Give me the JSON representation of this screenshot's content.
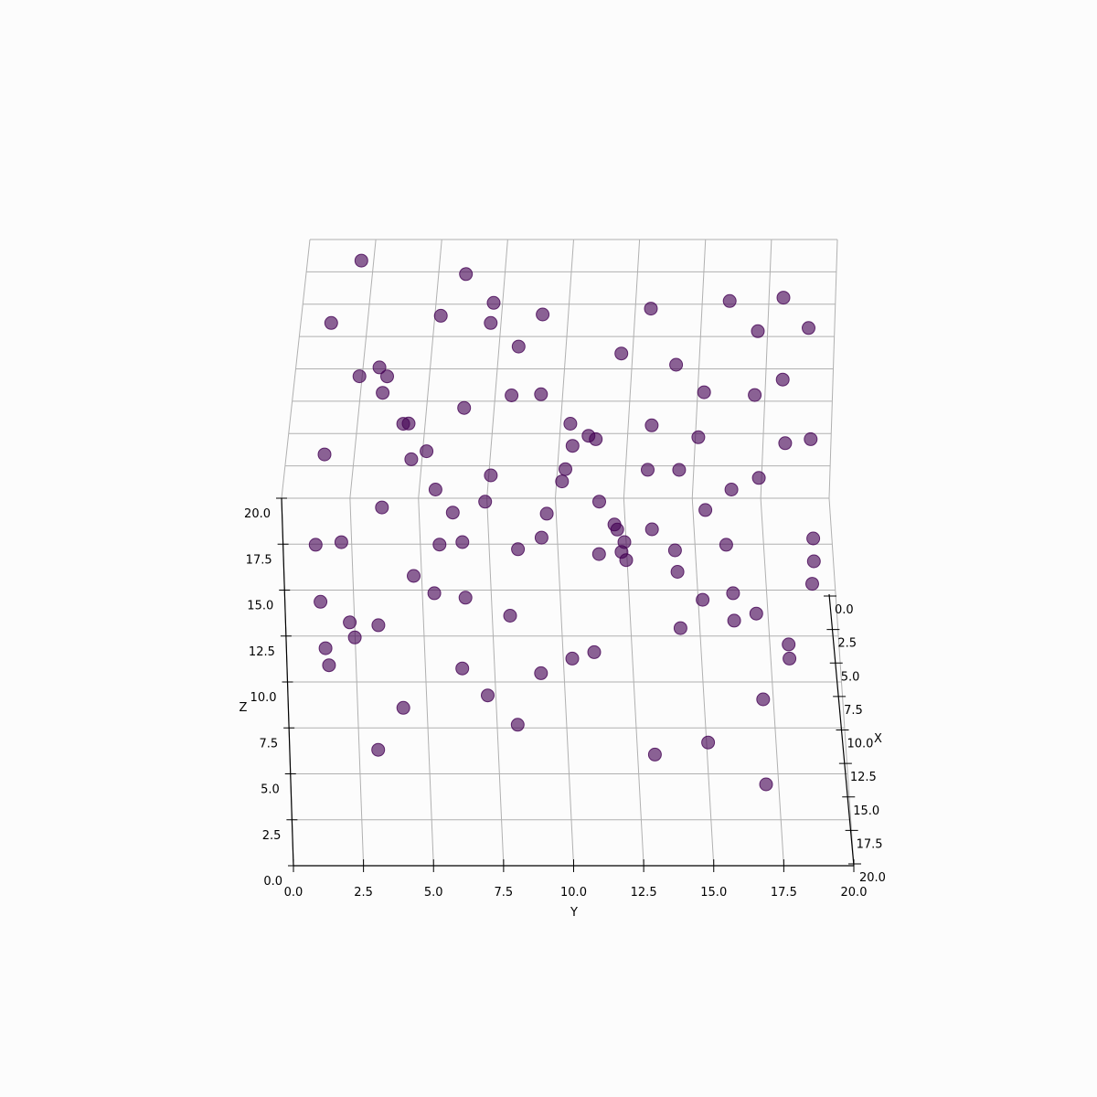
{
  "chart_data": {
    "type": "scatter3d",
    "title": "",
    "xlabel": "X",
    "ylabel": "Y",
    "zlabel": "Z",
    "xlim": [
      0,
      20
    ],
    "ylim": [
      0,
      20
    ],
    "zlim": [
      0,
      20
    ],
    "x_ticks": [
      "0.0",
      "2.5",
      "5.0",
      "7.5",
      "10.0",
      "12.5",
      "15.0",
      "17.5",
      "20.0"
    ],
    "y_ticks": [
      "0.0",
      "2.5",
      "5.0",
      "7.5",
      "10.0",
      "12.5",
      "15.0",
      "17.5",
      "20.0"
    ],
    "z_ticks": [
      "0.0",
      "2.5",
      "5.0",
      "7.5",
      "10.0",
      "12.5",
      "15.0",
      "17.5",
      "20.0"
    ],
    "grid": true,
    "marker_color": "#440154",
    "points": [
      [
        5,
        1,
        3
      ],
      [
        10,
        1,
        5
      ],
      [
        15,
        1,
        8
      ],
      [
        18,
        1,
        11
      ],
      [
        3,
        1,
        16
      ],
      [
        4,
        2,
        2
      ],
      [
        12,
        2,
        6
      ],
      [
        16,
        2,
        10
      ],
      [
        8,
        2,
        17
      ],
      [
        1,
        2,
        19
      ],
      [
        6,
        3,
        14
      ],
      [
        13,
        3,
        7
      ],
      [
        2,
        3,
        12
      ],
      [
        17,
        3,
        4
      ],
      [
        9,
        3,
        18
      ],
      [
        3,
        4,
        9
      ],
      [
        11,
        4,
        15
      ],
      [
        14,
        4,
        3
      ],
      [
        7,
        4,
        13
      ],
      [
        18,
        4,
        17
      ],
      [
        2,
        5,
        6
      ],
      [
        10,
        5,
        12
      ],
      [
        16,
        5,
        16
      ],
      [
        6,
        5,
        19
      ],
      [
        13,
        5,
        9
      ],
      [
        4,
        6,
        4
      ],
      [
        12,
        6,
        11
      ],
      [
        8,
        6,
        15
      ],
      [
        17,
        6,
        14
      ],
      [
        1,
        6,
        18
      ],
      [
        7,
        7,
        8
      ],
      [
        15,
        7,
        5
      ],
      [
        3,
        7,
        16
      ],
      [
        11,
        7,
        14
      ],
      [
        5,
        7,
        19
      ],
      [
        9,
        8,
        3
      ],
      [
        2,
        8,
        10
      ],
      [
        14,
        8,
        13
      ],
      [
        18,
        8,
        7
      ],
      [
        6,
        8,
        17
      ],
      [
        1,
        9,
        15
      ],
      [
        10,
        9,
        9
      ],
      [
        13,
        9,
        4
      ],
      [
        16,
        9,
        18
      ],
      [
        4,
        9,
        12
      ],
      [
        8,
        10,
        14
      ],
      [
        3,
        10,
        5
      ],
      [
        12,
        10,
        17
      ],
      [
        17,
        10,
        10
      ],
      [
        5,
        10,
        8
      ],
      [
        7,
        11,
        12
      ],
      [
        14,
        11,
        16
      ],
      [
        1,
        11,
        6
      ],
      [
        11,
        11,
        3
      ],
      [
        15,
        11,
        14
      ],
      [
        2,
        12,
        13
      ],
      [
        9,
        12,
        7
      ],
      [
        16,
        12,
        15
      ],
      [
        5,
        12,
        4
      ],
      [
        12,
        12,
        11
      ],
      [
        6,
        13,
        9
      ],
      [
        13,
        13,
        13
      ],
      [
        18,
        13,
        5
      ],
      [
        3,
        13,
        17
      ],
      [
        10,
        13,
        16
      ],
      [
        4,
        14,
        14
      ],
      [
        11,
        14,
        8
      ],
      [
        17,
        14,
        12
      ],
      [
        8,
        14,
        6
      ],
      [
        14,
        14,
        18
      ],
      [
        9,
        15,
        4
      ],
      [
        2,
        15,
        7
      ],
      [
        15,
        15,
        2
      ],
      [
        7,
        15,
        15
      ],
      [
        12,
        15,
        13
      ],
      [
        5,
        16,
        3
      ],
      [
        13,
        16,
        9
      ],
      [
        18,
        16,
        14
      ],
      [
        1,
        16,
        16
      ],
      [
        10,
        16,
        12
      ],
      [
        3,
        17,
        11
      ],
      [
        8,
        17,
        2
      ],
      [
        16,
        17,
        6
      ],
      [
        12,
        17,
        15
      ],
      [
        6,
        17,
        18
      ],
      [
        4,
        18,
        13
      ],
      [
        11,
        18,
        16
      ],
      [
        17,
        18,
        10
      ],
      [
        14,
        18,
        7
      ],
      [
        2,
        18,
        17
      ],
      [
        7,
        19,
        12
      ],
      [
        15,
        19,
        15
      ],
      [
        9,
        19,
        5
      ],
      [
        1,
        19,
        14
      ],
      [
        13,
        19,
        11
      ],
      [
        6,
        1,
        10
      ],
      [
        11,
        3,
        12
      ],
      [
        16,
        6,
        8
      ],
      [
        3,
        12,
        2
      ],
      [
        18,
        17,
        3
      ]
    ]
  }
}
